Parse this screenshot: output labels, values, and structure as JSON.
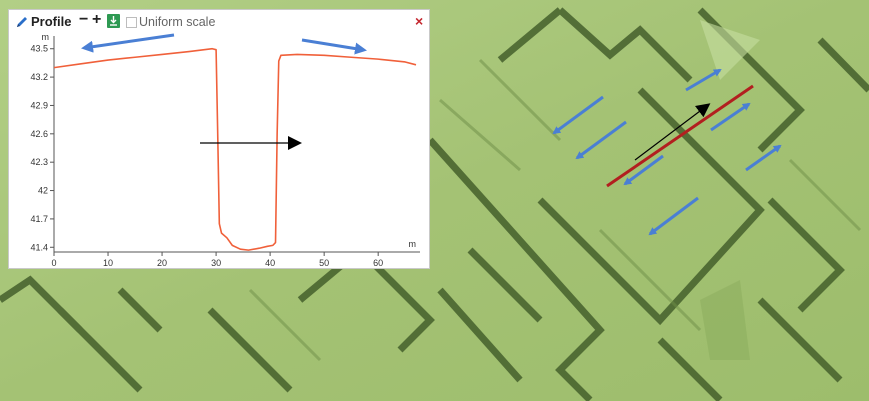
{
  "panel": {
    "title": "Profile",
    "zoom_out_label": "−",
    "zoom_in_label": "+",
    "download_icon": "download-icon",
    "uniform_scale_label": "Uniform scale",
    "uniform_scale_checked": false,
    "close_label": "×"
  },
  "colors": {
    "profile_line": "#f0603a",
    "arrow_blue": "#4a7fd4",
    "section_red": "#b21f1f",
    "map_green": "#a9c77c",
    "wall_dark": "#3f5a28"
  },
  "chart_data": {
    "type": "line",
    "x_unit": "m",
    "y_unit": "m",
    "xlim": [
      0,
      67
    ],
    "ylim": [
      41.35,
      43.55
    ],
    "x_ticks": [
      0,
      10,
      20,
      30,
      40,
      50,
      60
    ],
    "y_ticks": [
      41.4,
      41.7,
      42,
      42.3,
      42.6,
      42.9,
      43.2,
      43.5
    ],
    "y_tick_labels": [
      "41.4",
      "41.7",
      "42",
      "42.3",
      "42.6",
      "42.9",
      "43.2",
      "43.5"
    ],
    "series": [
      {
        "x": [
          0,
          5,
          10,
          15,
          20,
          25,
          29.3,
          30.0,
          30.3,
          30.6,
          31.0,
          32.0,
          33.0,
          34.5,
          36.0,
          38.0,
          39.5,
          40.5,
          41.0,
          41.3,
          41.6,
          42.0,
          45,
          50,
          55,
          60,
          65,
          67
        ],
        "y": [
          43.3,
          43.34,
          43.38,
          43.41,
          43.44,
          43.47,
          43.5,
          43.49,
          42.6,
          41.65,
          41.55,
          41.5,
          41.42,
          41.38,
          41.37,
          41.39,
          41.41,
          41.42,
          41.45,
          42.6,
          43.37,
          43.43,
          43.44,
          43.43,
          43.41,
          43.39,
          43.36,
          43.33
        ]
      }
    ]
  }
}
